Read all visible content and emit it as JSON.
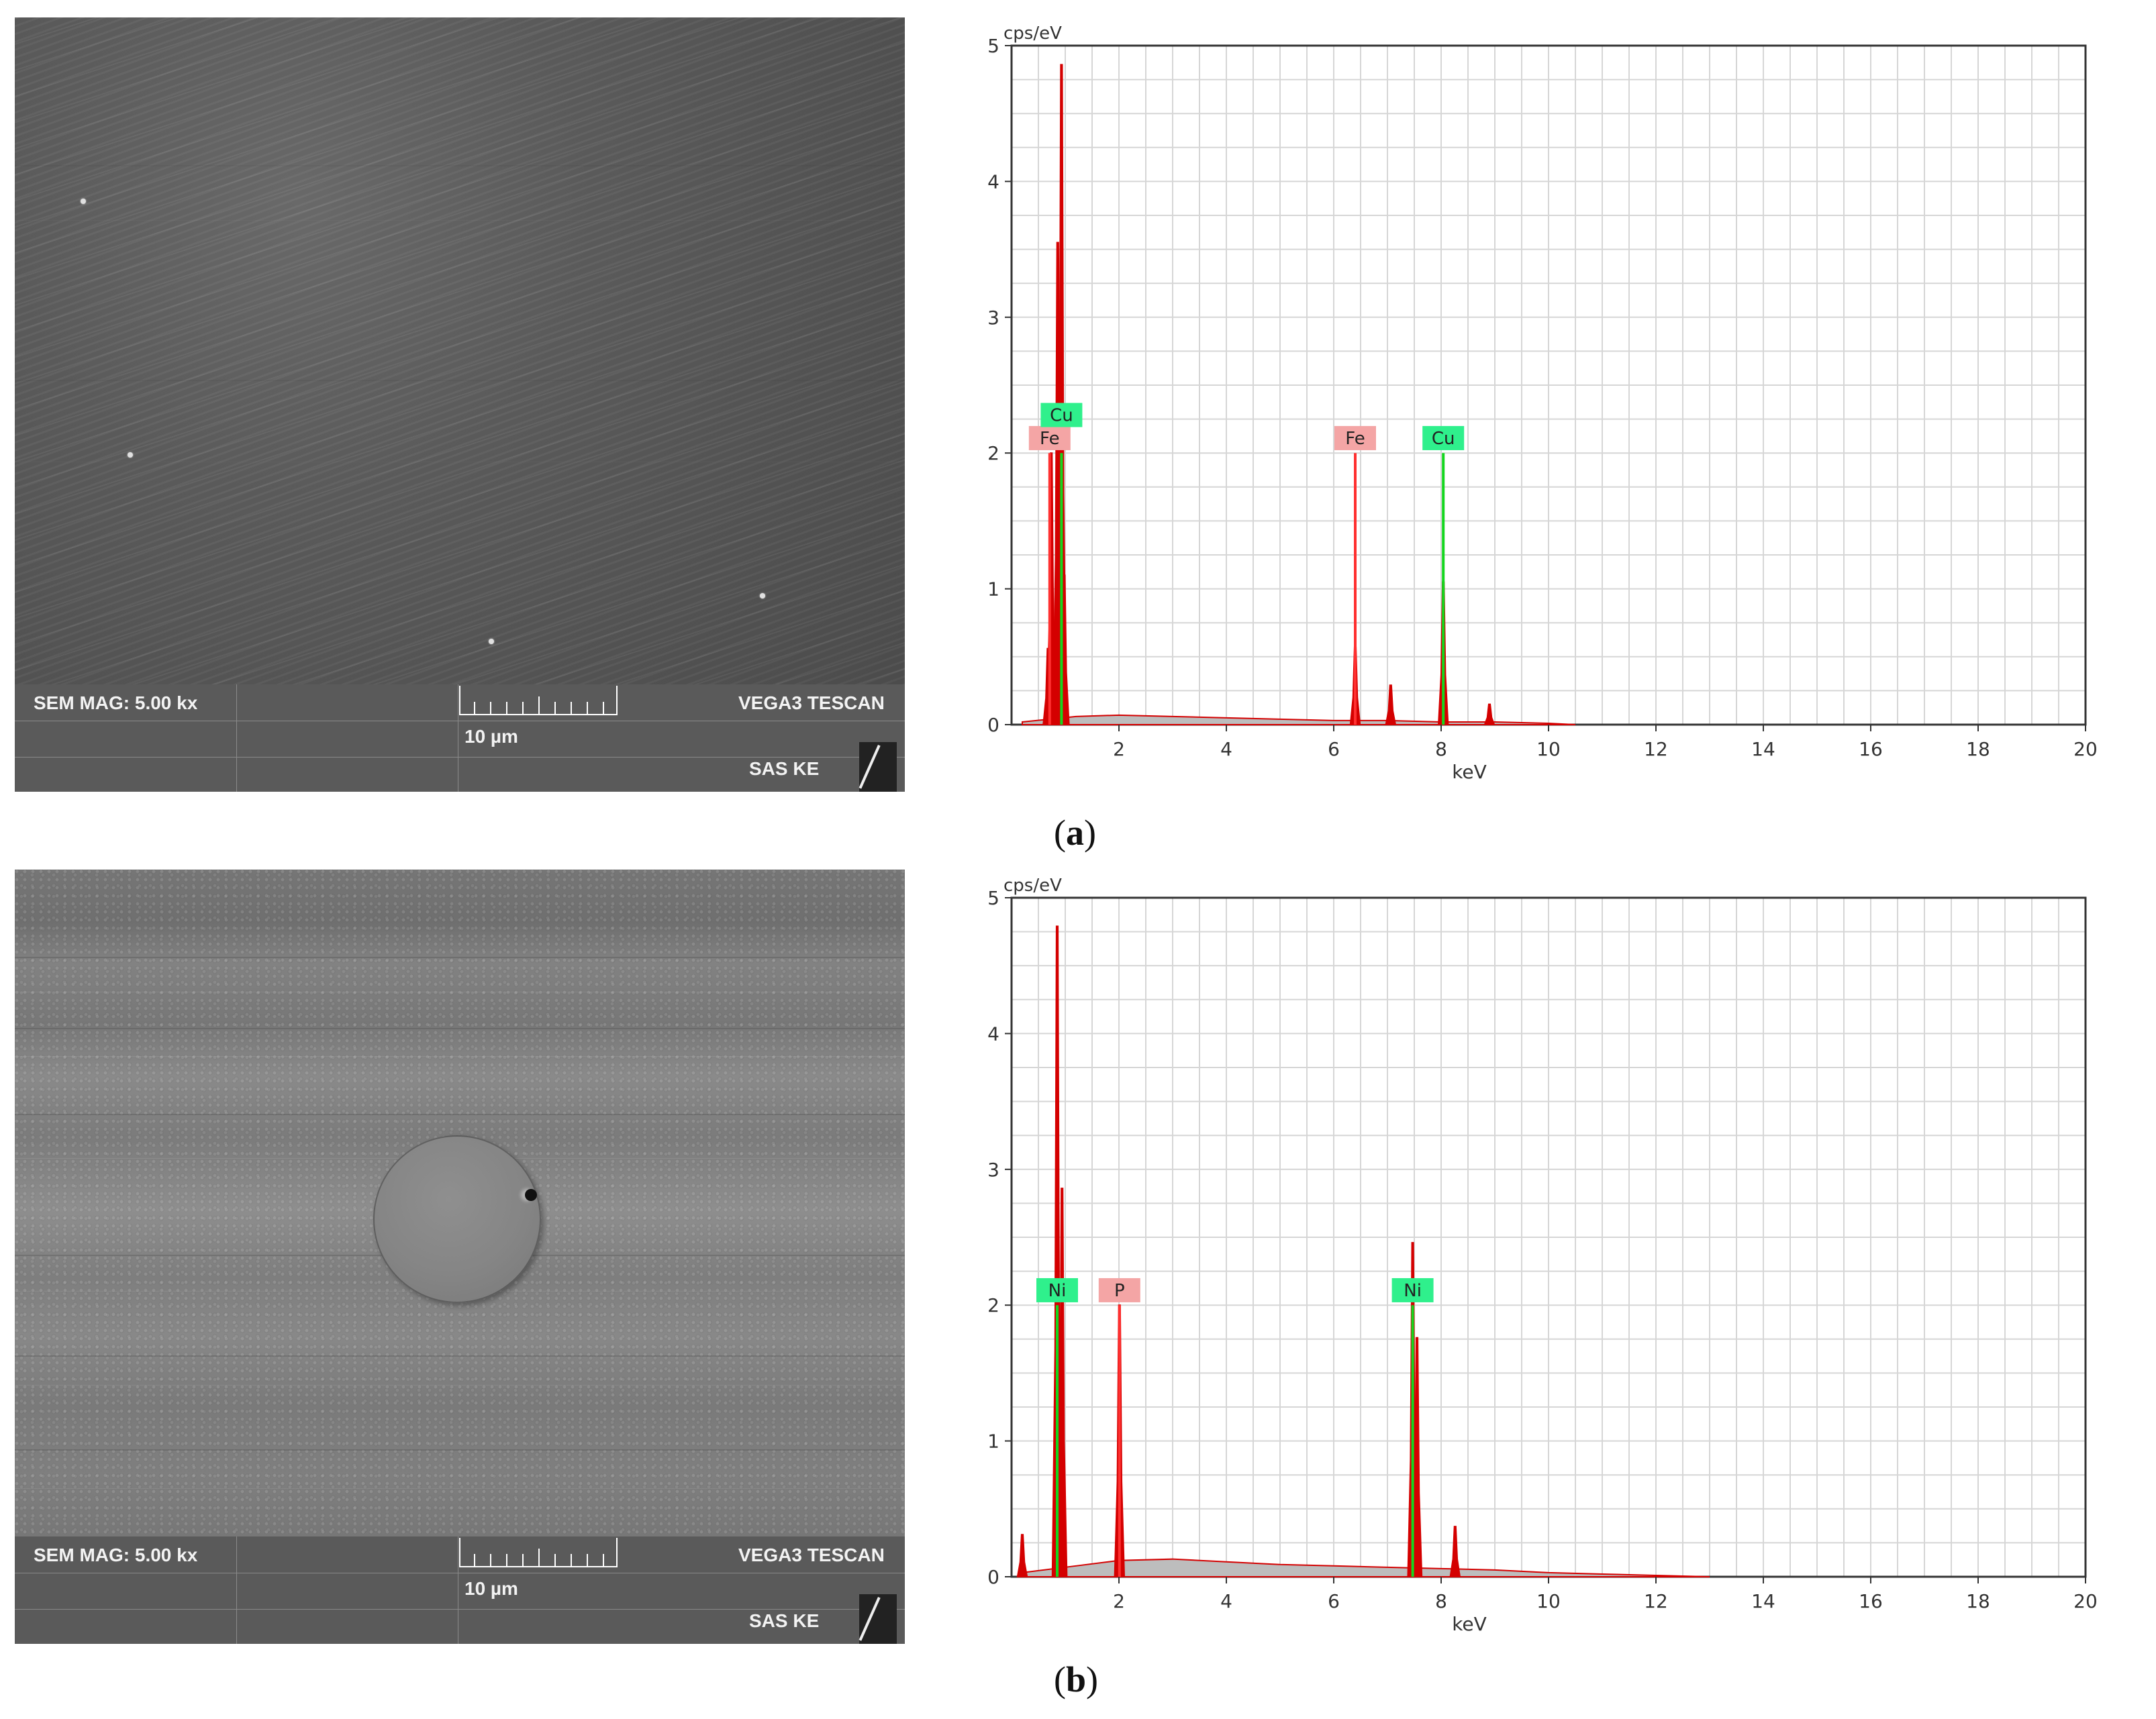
{
  "panels": [
    {
      "label_open": "(",
      "label_letter": "a",
      "label_close": ")",
      "sem": {
        "mag_text": "SEM MAG: 5.00 kx",
        "scale_text": "10 µm",
        "brand_text": "VEGA3 TESCAN",
        "lab_text": "SAS KE"
      }
    },
    {
      "label_open": "(",
      "label_letter": "b",
      "label_close": ")",
      "sem": {
        "mag_text": "SEM MAG: 5.00 kx",
        "scale_text": "10 µm",
        "brand_text": "VEGA3 TESCAN",
        "lab_text": "SAS KE"
      }
    }
  ],
  "colors": {
    "spectrum": "#d40000",
    "fe_p_label_bg": "#f4a5a5",
    "cu_ni_label_bg": "#2ff08c",
    "cu_ni_line": "#15d61f",
    "fe_p_line": "#ff3030",
    "grid": "#d6d6d6",
    "background_fill": "#bdbdbd"
  },
  "chart_data": [
    {
      "type": "line",
      "title": "",
      "xlabel": "keV",
      "ylabel": "cps/eV",
      "xlim": [
        0,
        20
      ],
      "ylim": [
        0,
        5
      ],
      "xticks": [
        2,
        4,
        6,
        8,
        10,
        12,
        14,
        16,
        18,
        20
      ],
      "yticks": [
        0,
        1,
        2,
        3,
        4,
        5
      ],
      "grid": true,
      "peaks": [
        {
          "x": 0.68,
          "y": 0.56
        },
        {
          "x": 0.74,
          "y": 2.0
        },
        {
          "x": 0.86,
          "y": 3.55
        },
        {
          "x": 0.93,
          "y": 4.86
        },
        {
          "x": 0.98,
          "y": 1.1
        },
        {
          "x": 6.4,
          "y": 0.57
        },
        {
          "x": 7.06,
          "y": 0.29
        },
        {
          "x": 8.04,
          "y": 1.05
        },
        {
          "x": 8.9,
          "y": 0.15
        }
      ],
      "background": [
        {
          "x": 0.2,
          "y": 0.02
        },
        {
          "x": 1.2,
          "y": 0.06
        },
        {
          "x": 2.0,
          "y": 0.07
        },
        {
          "x": 3.0,
          "y": 0.06
        },
        {
          "x": 4.0,
          "y": 0.05
        },
        {
          "x": 5.0,
          "y": 0.04
        },
        {
          "x": 6.0,
          "y": 0.03
        },
        {
          "x": 7.0,
          "y": 0.03
        },
        {
          "x": 8.0,
          "y": 0.02
        },
        {
          "x": 9.0,
          "y": 0.02
        },
        {
          "x": 10.0,
          "y": 0.01
        },
        {
          "x": 10.5,
          "y": 0.0
        }
      ],
      "element_markers": [
        {
          "element": "Fe",
          "x": 0.71,
          "label_y": 2.11,
          "line_to": 2.0,
          "kind": "fe_p"
        },
        {
          "element": "Cu",
          "x": 0.93,
          "label_y": 2.28,
          "line_to": 2.0,
          "kind": "cu_ni"
        },
        {
          "element": "Fe",
          "x": 6.4,
          "label_y": 2.11,
          "line_to": 2.0,
          "kind": "fe_p"
        },
        {
          "element": "Cu",
          "x": 8.04,
          "label_y": 2.11,
          "line_to": 2.0,
          "kind": "cu_ni"
        }
      ]
    },
    {
      "type": "line",
      "title": "",
      "xlabel": "keV",
      "ylabel": "cps/eV",
      "xlim": [
        0,
        20
      ],
      "ylim": [
        0,
        5
      ],
      "xticks": [
        2,
        4,
        6,
        8,
        10,
        12,
        14,
        16,
        18,
        20
      ],
      "yticks": [
        0,
        1,
        2,
        3,
        4,
        5
      ],
      "grid": true,
      "peaks": [
        {
          "x": 0.2,
          "y": 0.31
        },
        {
          "x": 0.85,
          "y": 4.79
        },
        {
          "x": 0.94,
          "y": 2.86
        },
        {
          "x": 2.01,
          "y": 2.0
        },
        {
          "x": 7.47,
          "y": 2.46
        },
        {
          "x": 7.55,
          "y": 1.76
        },
        {
          "x": 8.26,
          "y": 0.37
        }
      ],
      "background": [
        {
          "x": 0.2,
          "y": 0.03
        },
        {
          "x": 1.2,
          "y": 0.08
        },
        {
          "x": 2.0,
          "y": 0.12
        },
        {
          "x": 3.0,
          "y": 0.13
        },
        {
          "x": 4.0,
          "y": 0.11
        },
        {
          "x": 5.0,
          "y": 0.09
        },
        {
          "x": 6.0,
          "y": 0.08
        },
        {
          "x": 7.0,
          "y": 0.07
        },
        {
          "x": 8.0,
          "y": 0.06
        },
        {
          "x": 9.0,
          "y": 0.05
        },
        {
          "x": 10.0,
          "y": 0.03
        },
        {
          "x": 11.0,
          "y": 0.02
        },
        {
          "x": 12.0,
          "y": 0.01
        },
        {
          "x": 13.0,
          "y": 0.0
        }
      ],
      "element_markers": [
        {
          "element": "Ni",
          "x": 0.85,
          "label_y": 2.11,
          "line_to": 2.0,
          "kind": "cu_ni"
        },
        {
          "element": "P",
          "x": 2.01,
          "label_y": 2.11,
          "line_to": 2.0,
          "kind": "fe_p"
        },
        {
          "element": "Ni",
          "x": 7.47,
          "label_y": 2.11,
          "line_to": 2.0,
          "kind": "cu_ni"
        }
      ]
    }
  ]
}
